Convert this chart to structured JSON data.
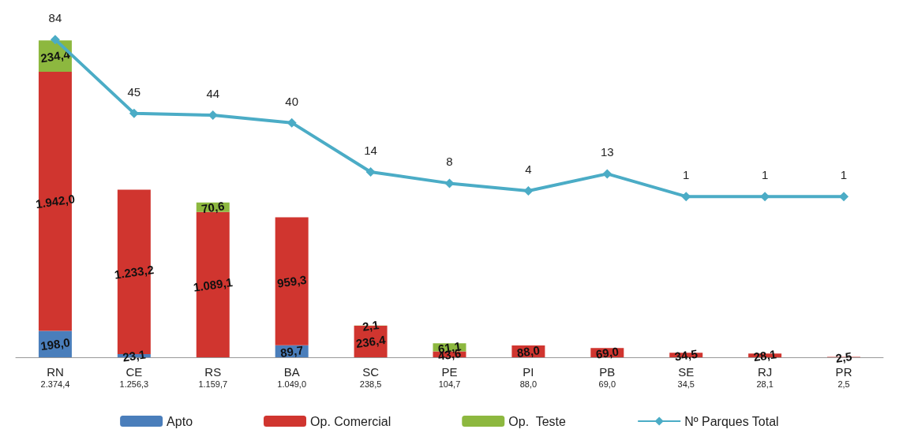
{
  "chart_data": {
    "type": "bar",
    "stacked": true,
    "categories": [
      "RN",
      "CE",
      "RS",
      "BA",
      "SC",
      "PE",
      "PI",
      "PB",
      "SE",
      "RJ",
      "PR"
    ],
    "totals": [
      "2.374,4",
      "1.256,3",
      "1.159,7",
      "1.049,0",
      "238,5",
      "104,7",
      "88,0",
      "69,0",
      "34,5",
      "28,1",
      "2,5"
    ],
    "legend": "bottom",
    "grid": false,
    "series": [
      {
        "name": "Apto",
        "color": "#4a7ebb",
        "values": [
          198.0,
          23.1,
          null,
          89.7,
          null,
          null,
          null,
          null,
          null,
          null,
          null
        ],
        "value_labels": [
          "198,0",
          "23,1",
          null,
          "89,7",
          null,
          null,
          null,
          null,
          null,
          null,
          null
        ]
      },
      {
        "name": "Op. Comercial",
        "color": "#d0352f",
        "values": [
          1942.0,
          1233.2,
          1089.1,
          959.3,
          236.4,
          43.6,
          88.0,
          69.0,
          34.5,
          28.1,
          2.5
        ],
        "value_labels": [
          "1.942,0",
          "1.233,2",
          "1.089,1",
          "959,3",
          "236,4",
          "43,6",
          "88,0",
          "69,0",
          "34,5",
          "28,1",
          "2,5"
        ]
      },
      {
        "name": "Op.  Teste",
        "color": "#8db83f",
        "values": [
          234.4,
          null,
          70.6,
          null,
          2.1,
          61.1,
          null,
          null,
          null,
          null,
          null
        ],
        "value_labels": [
          "234,4",
          null,
          "70,6",
          null,
          "2,1",
          "61,1",
          null,
          null,
          null,
          null,
          null
        ]
      },
      {
        "name": "Nº Parques Total",
        "type": "line",
        "axis": "y2",
        "color": "#4bacc6",
        "marker": "diamond",
        "values": [
          84,
          45,
          44,
          40,
          14,
          8,
          4,
          13,
          1,
          1,
          1
        ],
        "value_labels": [
          "84",
          "45",
          "44",
          "40",
          "14",
          "8",
          "4",
          "13",
          "1",
          "1",
          "1"
        ]
      }
    ]
  }
}
